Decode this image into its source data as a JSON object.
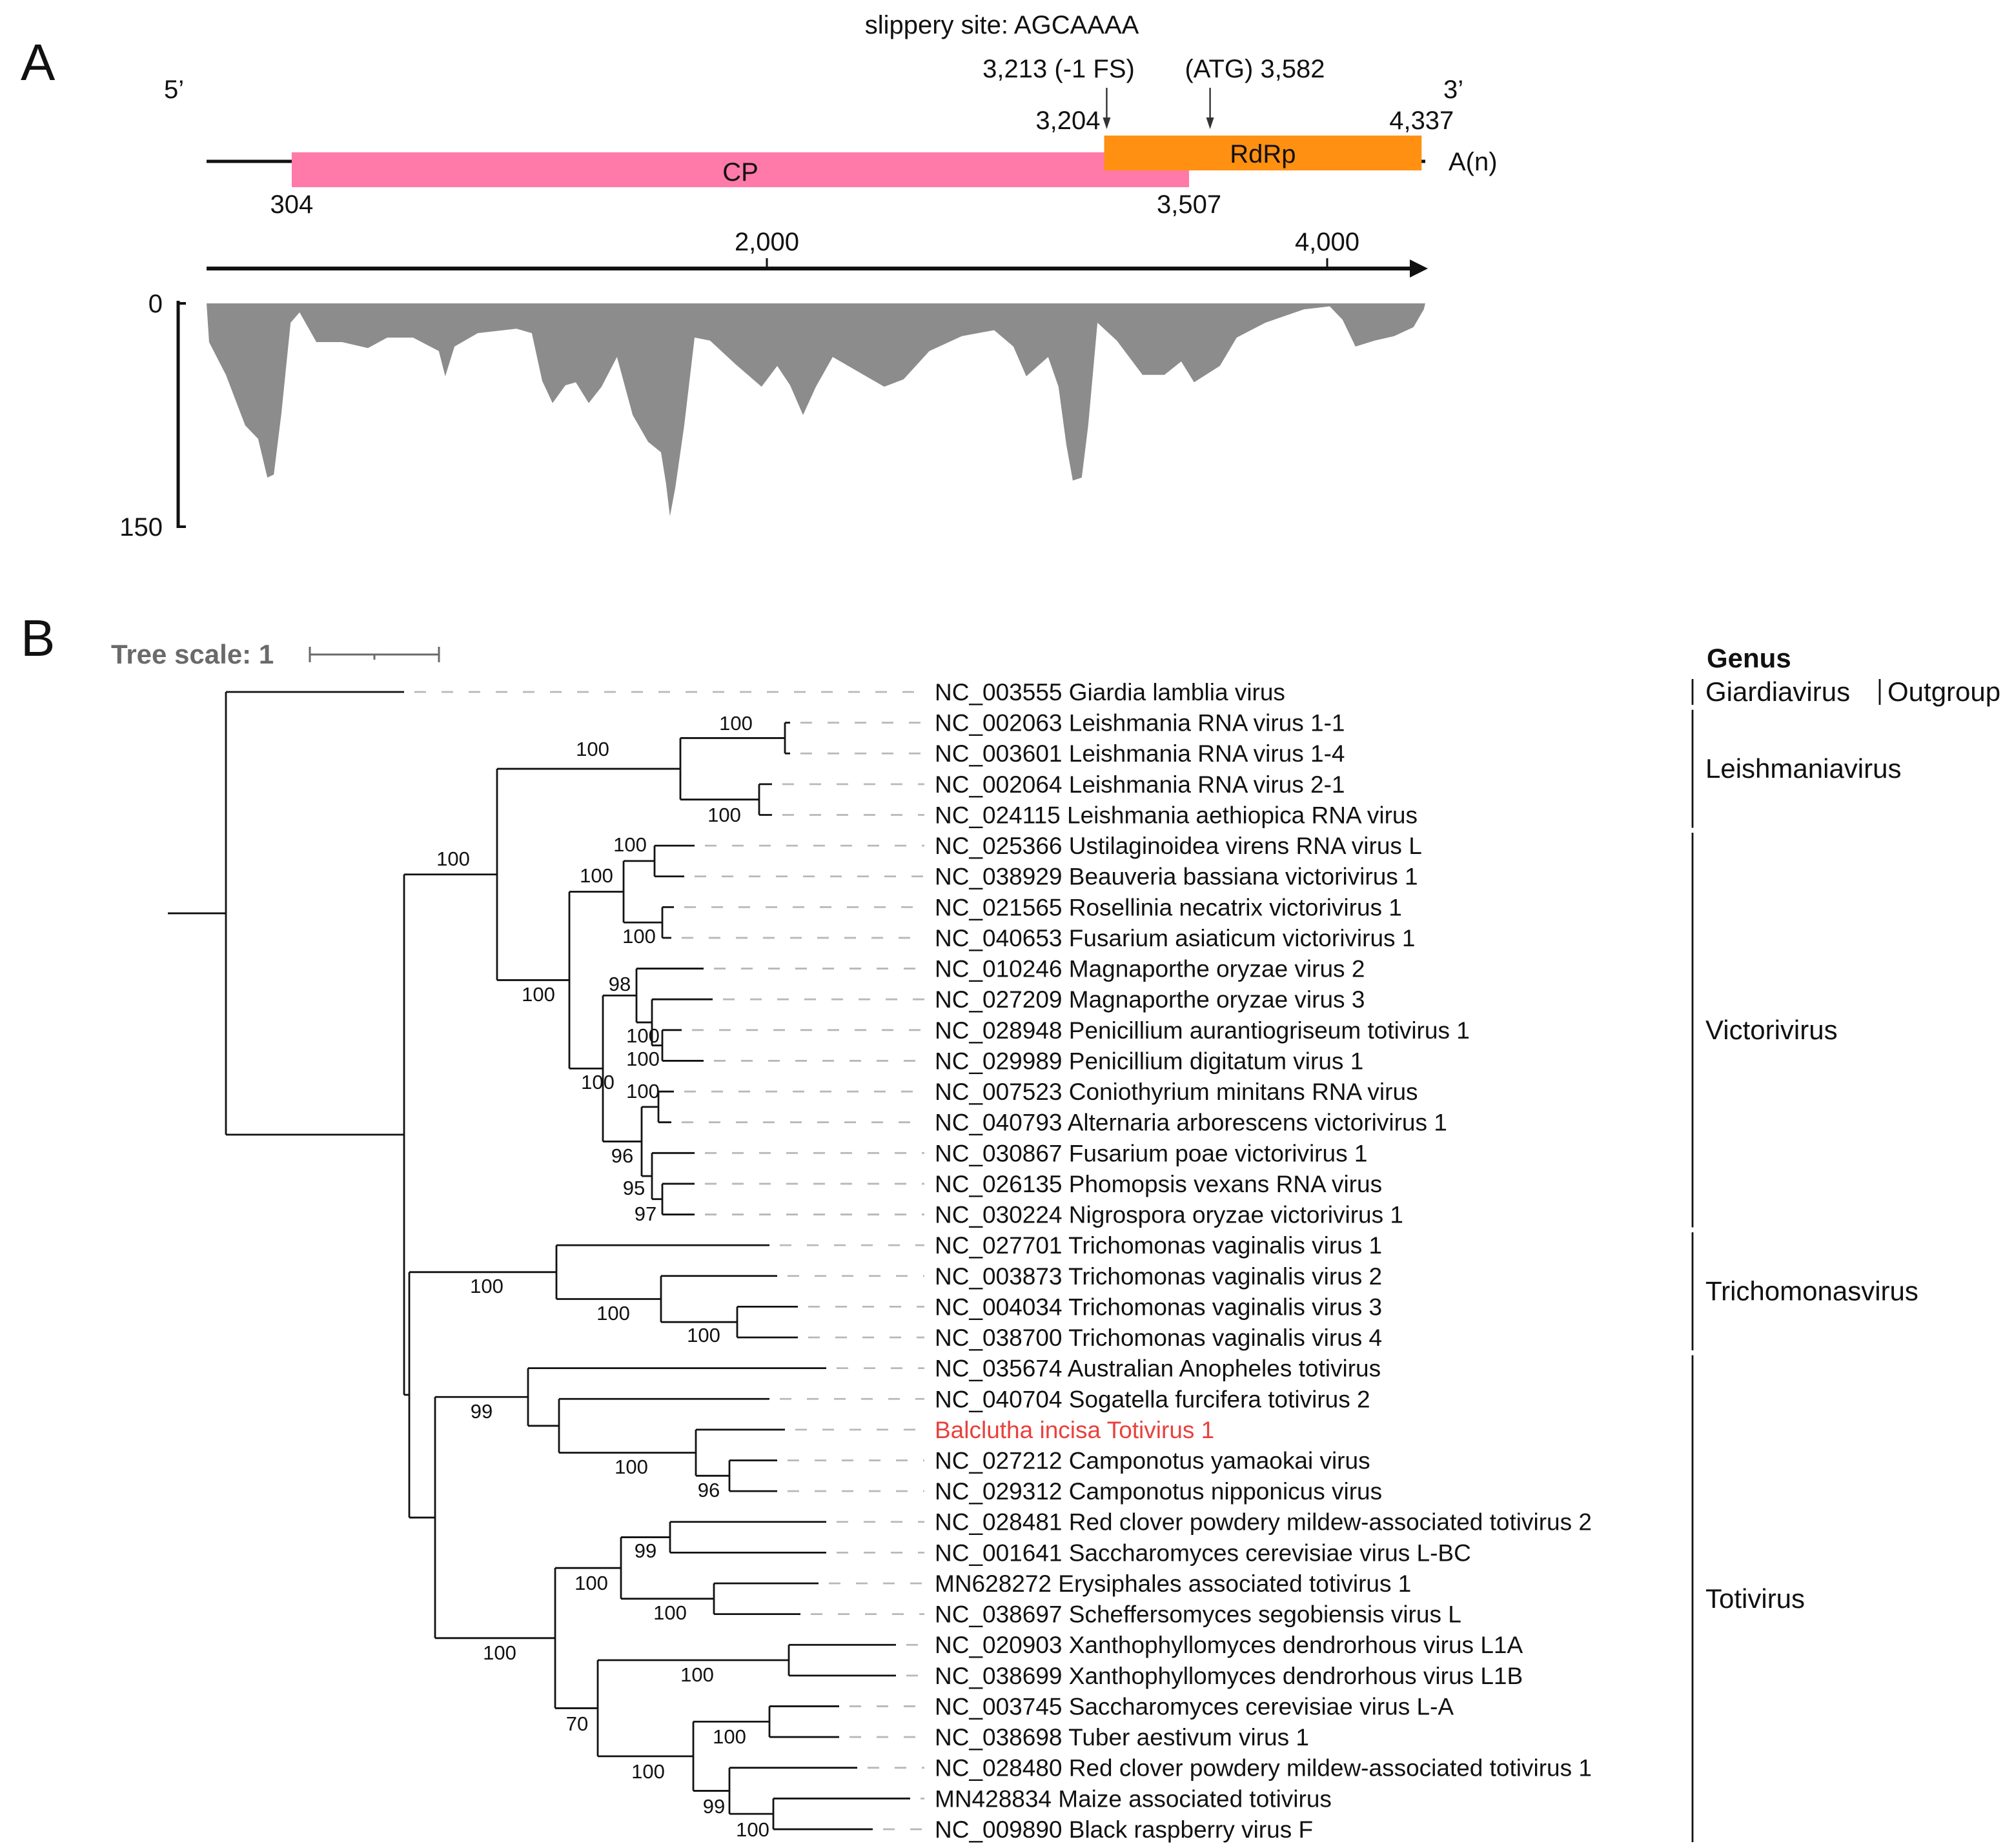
{
  "panel_a": {
    "label": "A",
    "slippery_site": "slippery site: AGCAAAA",
    "fs_label": "3,213 (-1 FS)",
    "atg_label": "(ATG) 3,582",
    "five_prime": "5’",
    "three_prime": "3’",
    "poly_a": "A(n)",
    "cp": {
      "name": "CP",
      "start": 304,
      "end": 3507,
      "start_label": "304",
      "end_label": "3,507",
      "color": "#ff7aa8"
    },
    "rdrp": {
      "name": "RdRp",
      "start": 3204,
      "end": 4337,
      "start_label": "3,204",
      "end_label": "4,337",
      "color": "#ff9012"
    },
    "axis_ticks": [
      {
        "value": 2000,
        "label": "2,000"
      },
      {
        "value": 4000,
        "label": "4,000"
      }
    ],
    "coverage_ticks": [
      {
        "value": 0,
        "label": "0"
      },
      {
        "value": 150,
        "label": "150"
      }
    ]
  },
  "chart_data": {
    "type": "area",
    "xlabel": "",
    "ylabel": "",
    "xlim": [
      0,
      4350
    ],
    "ylim": [
      0,
      150
    ],
    "y_inverted": true,
    "color": "#8c8c8c",
    "x": [
      0,
      9,
      69,
      138,
      184,
      217,
      240,
      267,
      300,
      332,
      392,
      484,
      576,
      645,
      737,
      829,
      852,
      885,
      968,
      1106,
      1161,
      1198,
      1235,
      1281,
      1318,
      1364,
      1410,
      1465,
      1521,
      1576,
      1622,
      1640,
      1654,
      1673,
      1705,
      1742,
      1797,
      1889,
      1981,
      2037,
      2083,
      2129,
      2175,
      2235,
      2327,
      2419,
      2488,
      2580,
      2696,
      2811,
      2880,
      2926,
      3004,
      3041,
      3069,
      3092,
      3124,
      3147,
      3180,
      3249,
      3341,
      3419,
      3479,
      3525,
      3617,
      3677,
      3779,
      3917,
      4009,
      4055,
      4101,
      4170,
      4239,
      4308,
      4345,
      4350
    ],
    "y": [
      0,
      26,
      48,
      82,
      91,
      117,
      115,
      74,
      13,
      6,
      26,
      26,
      30,
      23,
      23,
      32,
      49,
      29,
      20,
      17,
      20,
      52,
      67,
      55,
      53,
      67,
      56,
      36,
      75,
      93,
      100,
      121,
      143,
      124,
      82,
      23,
      25,
      41,
      56,
      42,
      55,
      75,
      56,
      36,
      46,
      56,
      51,
      32,
      22,
      18,
      29,
      49,
      36,
      56,
      95,
      119,
      117,
      82,
      13,
      25,
      48,
      48,
      39,
      53,
      42,
      23,
      13,
      4,
      2,
      11,
      29,
      25,
      22,
      16,
      4,
      0
    ]
  },
  "panel_b": {
    "label": "B",
    "tree_scale": "Tree scale: 1",
    "genus_header": "Genus",
    "highlight_color": "#e8413c",
    "leaves": [
      {
        "label": "NC_003555 Giardia lamblia virus"
      },
      {
        "label": "NC_002063 Leishmania RNA virus 1-1"
      },
      {
        "label": "NC_003601 Leishmania RNA virus 1-4"
      },
      {
        "label": "NC_002064 Leishmania RNA virus 2-1"
      },
      {
        "label": "NC_024115 Leishmania aethiopica RNA virus"
      },
      {
        "label": "NC_025366 Ustilaginoidea virens RNA virus L"
      },
      {
        "label": "NC_038929 Beauveria bassiana victorivirus 1"
      },
      {
        "label": "NC_021565 Rosellinia necatrix victorivirus 1"
      },
      {
        "label": "NC_040653 Fusarium asiaticum victorivirus 1"
      },
      {
        "label": "NC_010246 Magnaporthe oryzae virus 2"
      },
      {
        "label": "NC_027209 Magnaporthe oryzae virus 3"
      },
      {
        "label": "NC_028948 Penicillium aurantiogriseum totivirus 1"
      },
      {
        "label": "NC_029989 Penicillium digitatum virus 1"
      },
      {
        "label": "NC_007523 Coniothyrium minitans RNA virus"
      },
      {
        "label": "NC_040793 Alternaria arborescens victorivirus 1"
      },
      {
        "label": "NC_030867 Fusarium poae victorivirus 1"
      },
      {
        "label": "NC_026135 Phomopsis vexans RNA virus"
      },
      {
        "label": "NC_030224 Nigrospora oryzae victorivirus 1"
      },
      {
        "label": "NC_027701 Trichomonas vaginalis virus 1"
      },
      {
        "label": "NC_003873 Trichomonas vaginalis virus 2"
      },
      {
        "label": "NC_004034 Trichomonas vaginalis virus 3"
      },
      {
        "label": "NC_038700 Trichomonas vaginalis virus 4"
      },
      {
        "label": "NC_035674 Australian Anopheles totivirus"
      },
      {
        "label": "NC_040704 Sogatella furcifera totivirus 2"
      },
      {
        "label": "Balclutha incisa Totivirus 1",
        "highlight": true
      },
      {
        "label": "NC_027212 Camponotus yamaokai virus"
      },
      {
        "label": "NC_029312 Camponotus nipponicus virus"
      },
      {
        "label": "NC_028481 Red clover powdery mildew-associated totivirus 2"
      },
      {
        "label": "NC_001641 Saccharomyces cerevisiae virus L-BC"
      },
      {
        "label": "MN628272 Erysiphales associated totivirus 1"
      },
      {
        "label": "NC_038697 Scheffersomyces segobiensis virus L"
      },
      {
        "label": "NC_020903 Xanthophyllomyces dendrorhous virus L1A"
      },
      {
        "label": "NC_038699 Xanthophyllomyces dendrorhous virus L1B"
      },
      {
        "label": "NC_003745 Saccharomyces cerevisiae virus L-A"
      },
      {
        "label": "NC_038698 Tuber aestivum virus 1"
      },
      {
        "label": "NC_028480 Red clover powdery mildew-associated totivirus 1"
      },
      {
        "label": "MN428834 Maize associated totivirus"
      },
      {
        "label": "NC_009890 Black raspberry virus F"
      }
    ],
    "bootstrap": {
      "nB": "100",
      "nLe": "100",
      "nL1": "100",
      "nL2": "100",
      "nVi": "100",
      "nV1": "100",
      "nV1a": "100",
      "nV1b": "100",
      "nV2": "100",
      "n98": "98",
      "nN3": "100",
      "nN4": "100",
      "n96": "96",
      "nN5": "100",
      "nN6": "95",
      "nN7": "97",
      "nTr": "100",
      "nT2": "100",
      "nT3": "100",
      "nTo1": "99",
      "nX2": "100",
      "nX3": "96",
      "nTo2": "100",
      "nTA": "100",
      "nA1": "99",
      "nA2": "100",
      "nTB": "70",
      "nB1": "100",
      "nB2": "100",
      "nB2a": "100",
      "nB2b": "99",
      "nB3": "100"
    },
    "genera": [
      {
        "name": "Giardiavirus",
        "first": 0,
        "last": 0,
        "extra": "Outgroup"
      },
      {
        "name": "Leishmaniavirus",
        "first": 1,
        "last": 4
      },
      {
        "name": "Victorivirus",
        "first": 5,
        "last": 17
      },
      {
        "name": "Trichomonasvirus",
        "first": 18,
        "last": 21
      },
      {
        "name": "Totivirus",
        "first": 22,
        "last": 37
      }
    ]
  }
}
